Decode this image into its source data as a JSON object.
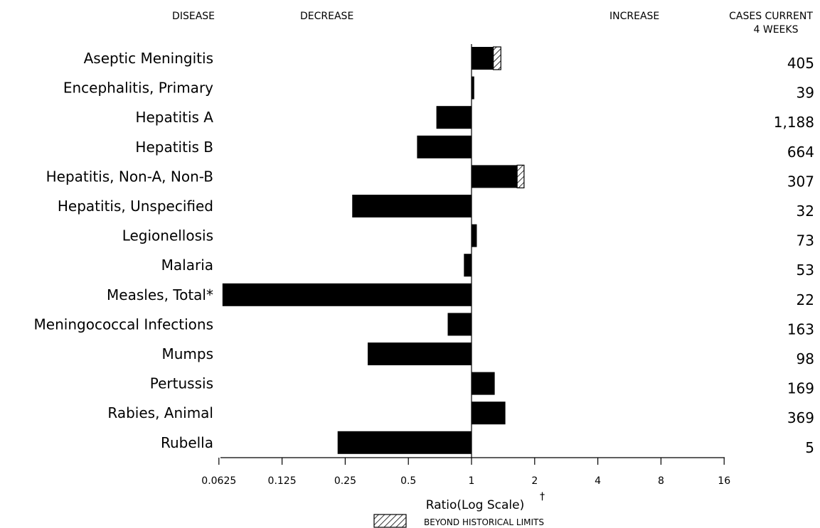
{
  "headers": {
    "disease": "DISEASE",
    "decrease": "DECREASE",
    "increase": "INCREASE",
    "cases_line1": "CASES CURRENT",
    "cases_line2": "4 WEEKS"
  },
  "chart_data": {
    "type": "bar",
    "orientation": "horizontal",
    "scale": "log2",
    "reference_value": 1,
    "categories": [
      "Aseptic Meningitis",
      "Encephalitis, Primary",
      "Hepatitis A",
      "Hepatitis B",
      "Hepatitis, Non-A, Non-B",
      "Hepatitis, Unspecified",
      "Legionellosis",
      "Malaria",
      "Measles, Total*",
      "Meningococcal Infections",
      "Mumps",
      "Pertussis",
      "Rabies, Animal",
      "Rubella"
    ],
    "values": [
      1.38,
      1.03,
      0.68,
      0.55,
      1.78,
      0.27,
      1.06,
      0.92,
      0.065,
      0.77,
      0.32,
      1.29,
      1.45,
      0.23
    ],
    "beyond_historical_limits": [
      1.27,
      null,
      null,
      null,
      1.65,
      null,
      null,
      null,
      null,
      null,
      null,
      null,
      null,
      null
    ],
    "cases": [
      "405",
      "39",
      "1,188",
      "664",
      "307",
      "32",
      "73",
      "53",
      "22",
      "163",
      "98",
      "169",
      "369",
      "5"
    ],
    "xticks": [
      0.0625,
      0.125,
      0.25,
      0.5,
      1,
      2,
      4,
      8,
      16
    ],
    "xtick_labels": [
      "0.0625",
      "0.125",
      "0.25",
      "0.5",
      "1",
      "2",
      "4",
      "8",
      "16"
    ],
    "xlim": [
      0.0625,
      16
    ],
    "xlabel": "Ratio(Log Scale)",
    "xlabel_mark": "†",
    "legend": {
      "label": "BEYOND HISTORICAL LIMITS",
      "placement": "bottom-center"
    },
    "colors": {
      "bar": "#000000",
      "background": "#ffffff"
    }
  }
}
